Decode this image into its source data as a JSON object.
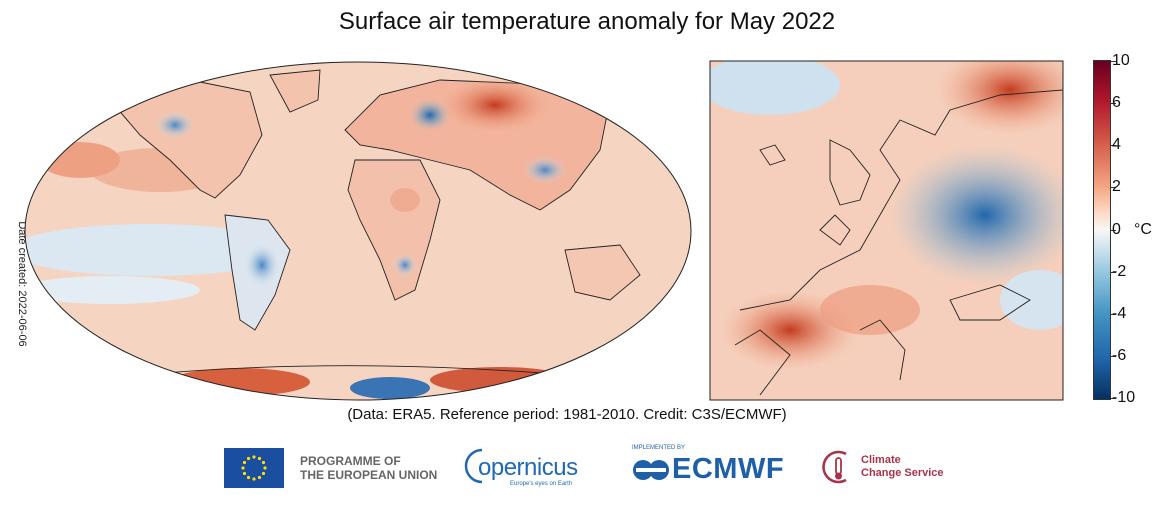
{
  "title": "Surface air temperature anomaly for May 2022",
  "date_created": "Date created: 2022-06-06",
  "credit": "(Data: ERA5.  Reference period: 1981-2010.  Credit: C3S/ECMWF)",
  "colorbar": {
    "unit": "°C",
    "ticks": [
      "10",
      "6",
      "4",
      "2",
      "0",
      "-2",
      "-4",
      "-6",
      "-10"
    ],
    "colors": {
      "max": "#67001f",
      "warm": "#d6604d",
      "mild": "#f4a582",
      "neutral": "#f7f7f7",
      "cool": "#92c5de",
      "cold": "#2166ac",
      "min": "#053061"
    }
  },
  "logos": {
    "eu_line1": "PROGRAMME OF",
    "eu_line2": "THE EUROPEAN UNION",
    "copernicus": "opernicus",
    "copernicus_tagline": "Europe's eyes on Earth",
    "implemented_by": "IMPLEMENTED BY",
    "ecmwf": "ECMWF",
    "c3s_line1": "Climate",
    "c3s_line2": "Change Service"
  }
}
